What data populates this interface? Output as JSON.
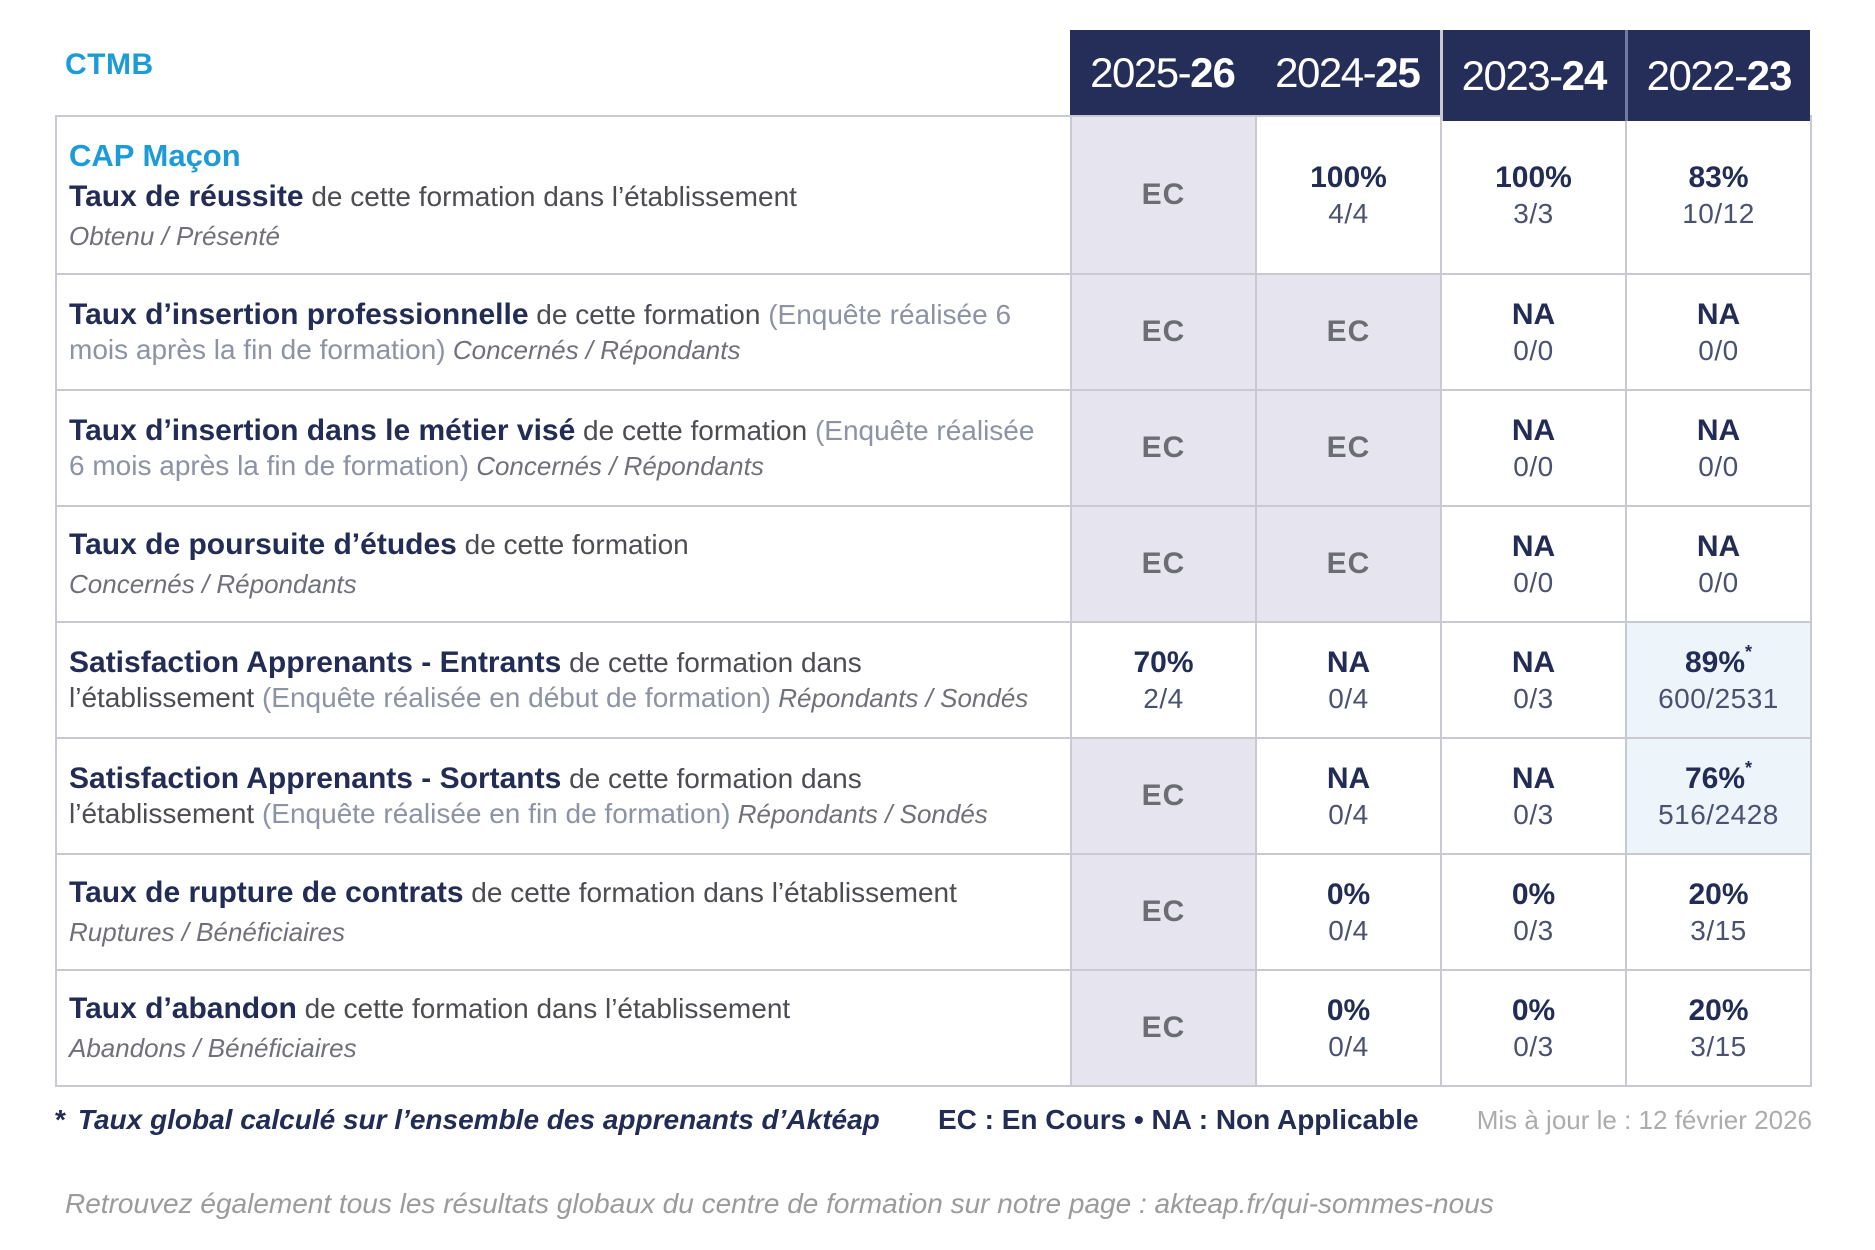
{
  "colors": {
    "accent": "#1b9cd9",
    "navy": "#252e58",
    "navy_text": "#222c54",
    "ec_bg": "#e6e5ef",
    "highlight_bg": "#edf4fa",
    "grid": "#c9c9d4"
  },
  "brand": {
    "org": "CTMB"
  },
  "program": "CAP Maçon",
  "header": {
    "years": [
      {
        "label": "2025-26",
        "light": "2025-",
        "bold": "26"
      },
      {
        "label": "2024-25",
        "light": "2024-",
        "bold": "25"
      },
      {
        "label": "2023-24",
        "light": "2023-",
        "bold": "24"
      },
      {
        "label": "2022-23",
        "light": "2022-",
        "bold": "23"
      }
    ]
  },
  "rows": [
    {
      "title": "Taux de réussite",
      "desc": "de cette formation dans l’établissement",
      "paren": "",
      "sub": "Obtenu / Présenté",
      "sub_block": true,
      "cells": [
        {
          "kind": "ec",
          "main": "EC"
        },
        {
          "kind": "plain",
          "main": "100%",
          "frac": "4/4"
        },
        {
          "kind": "plain",
          "main": "100%",
          "frac": "3/3"
        },
        {
          "kind": "plain",
          "main": "83%",
          "frac": "10/12"
        }
      ]
    },
    {
      "title": "Taux d’insertion professionnelle",
      "desc": "de cette formation",
      "paren": "(Enquête réalisée 6 mois après la fin de formation)",
      "sub": "Concernés / Répondants",
      "sub_block": false,
      "cells": [
        {
          "kind": "ec",
          "main": "EC"
        },
        {
          "kind": "ec",
          "main": "EC"
        },
        {
          "kind": "plain",
          "main": "NA",
          "frac": "0/0"
        },
        {
          "kind": "plain",
          "main": "NA",
          "frac": "0/0"
        }
      ]
    },
    {
      "title": "Taux d’insertion dans le métier visé",
      "desc": "de cette formation",
      "paren": "(Enquête réalisée 6 mois après la fin de formation)",
      "sub": "Concernés / Répondants",
      "sub_block": false,
      "cells": [
        {
          "kind": "ec",
          "main": "EC"
        },
        {
          "kind": "ec",
          "main": "EC"
        },
        {
          "kind": "plain",
          "main": "NA",
          "frac": "0/0"
        },
        {
          "kind": "plain",
          "main": "NA",
          "frac": "0/0"
        }
      ]
    },
    {
      "title": "Taux de poursuite d’études",
      "desc": "de cette formation",
      "paren": "",
      "sub": "Concernés / Répondants",
      "sub_block": true,
      "cells": [
        {
          "kind": "ec",
          "main": "EC"
        },
        {
          "kind": "ec",
          "main": "EC"
        },
        {
          "kind": "plain",
          "main": "NA",
          "frac": "0/0"
        },
        {
          "kind": "plain",
          "main": "NA",
          "frac": "0/0"
        }
      ]
    },
    {
      "title": "Satisfaction Apprenants - Entrants",
      "desc": "de cette formation dans l’établissement",
      "paren": "(Enquête réalisée en début de formation)",
      "sub": "Répondants / Sondés",
      "sub_block": false,
      "cells": [
        {
          "kind": "plain",
          "main": "70%",
          "frac": "2/4"
        },
        {
          "kind": "plain",
          "main": "NA",
          "frac": "0/4"
        },
        {
          "kind": "plain",
          "main": "NA",
          "frac": "0/3"
        },
        {
          "kind": "highlight",
          "main": "89%",
          "star": true,
          "frac": "600/2531"
        }
      ]
    },
    {
      "title": "Satisfaction Apprenants - Sortants",
      "desc": "de cette formation dans l’établissement",
      "paren": "(Enquête réalisée en fin de formation)",
      "sub": "Répondants / Sondés",
      "sub_block": false,
      "cells": [
        {
          "kind": "ec",
          "main": "EC"
        },
        {
          "kind": "plain",
          "main": "NA",
          "frac": "0/4"
        },
        {
          "kind": "plain",
          "main": "NA",
          "frac": "0/3"
        },
        {
          "kind": "highlight",
          "main": "76%",
          "star": true,
          "frac": "516/2428"
        }
      ]
    },
    {
      "title": "Taux de rupture de contrats",
      "desc": "de cette formation dans l’établissement",
      "paren": "",
      "sub": "Ruptures / Bénéficiaires",
      "sub_block": true,
      "cells": [
        {
          "kind": "ec",
          "main": "EC"
        },
        {
          "kind": "plain",
          "main": "0%",
          "frac": "0/4"
        },
        {
          "kind": "plain",
          "main": "0%",
          "frac": "0/3"
        },
        {
          "kind": "plain",
          "main": "20%",
          "frac": "3/15"
        }
      ]
    },
    {
      "title": "Taux d’abandon",
      "desc": "de cette formation dans l’établissement",
      "paren": "",
      "sub": "Abandons / Bénéficiaires",
      "sub_block": true,
      "cells": [
        {
          "kind": "ec",
          "main": "EC"
        },
        {
          "kind": "plain",
          "main": "0%",
          "frac": "0/4"
        },
        {
          "kind": "plain",
          "main": "0%",
          "frac": "0/3"
        },
        {
          "kind": "plain",
          "main": "20%",
          "frac": "3/15"
        }
      ]
    }
  ],
  "footer": {
    "footnote_star": "*",
    "footnote_text": "Taux global calculé sur l’ensemble des apprenants d’Aktéap",
    "legend": "EC : En Cours   •   NA : Non Applicable",
    "updated": "Mis à jour le : 12 février 2026"
  },
  "bottom_note": "Retrouvez également tous les résultats globaux du centre de formation sur notre page : akteap.fr/qui-sommes-nous"
}
